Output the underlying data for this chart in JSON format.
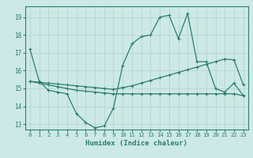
{
  "title": "",
  "xlabel": "Humidex (Indice chaleur)",
  "background_color": "#cce9e5",
  "line_color": "#2e7d72",
  "grid_color": "#b8d8d4",
  "xlim": [
    -0.5,
    23.5
  ],
  "ylim": [
    12.7,
    19.6
  ],
  "yticks": [
    13,
    14,
    15,
    16,
    17,
    18,
    19
  ],
  "xticks": [
    0,
    1,
    2,
    3,
    4,
    5,
    6,
    7,
    8,
    9,
    10,
    11,
    12,
    13,
    14,
    15,
    16,
    17,
    18,
    19,
    20,
    21,
    22,
    23
  ],
  "series1": [
    17.2,
    15.4,
    14.9,
    14.8,
    14.7,
    13.6,
    13.1,
    12.8,
    12.9,
    13.9,
    16.3,
    17.5,
    17.9,
    18.0,
    19.0,
    19.1,
    17.8,
    19.2,
    16.5,
    16.5,
    15.0,
    14.8,
    15.3,
    14.6
  ],
  "series2": [
    15.4,
    15.35,
    15.3,
    15.25,
    15.2,
    15.15,
    15.1,
    15.05,
    15.0,
    14.95,
    15.05,
    15.15,
    15.3,
    15.45,
    15.6,
    15.75,
    15.9,
    16.05,
    16.2,
    16.35,
    16.5,
    16.65,
    16.6,
    15.2
  ],
  "series3": [
    15.4,
    15.3,
    15.2,
    15.1,
    15.0,
    14.9,
    14.85,
    14.8,
    14.75,
    14.7,
    14.7,
    14.7,
    14.7,
    14.7,
    14.7,
    14.7,
    14.7,
    14.7,
    14.7,
    14.7,
    14.7,
    14.7,
    14.7,
    14.6
  ]
}
